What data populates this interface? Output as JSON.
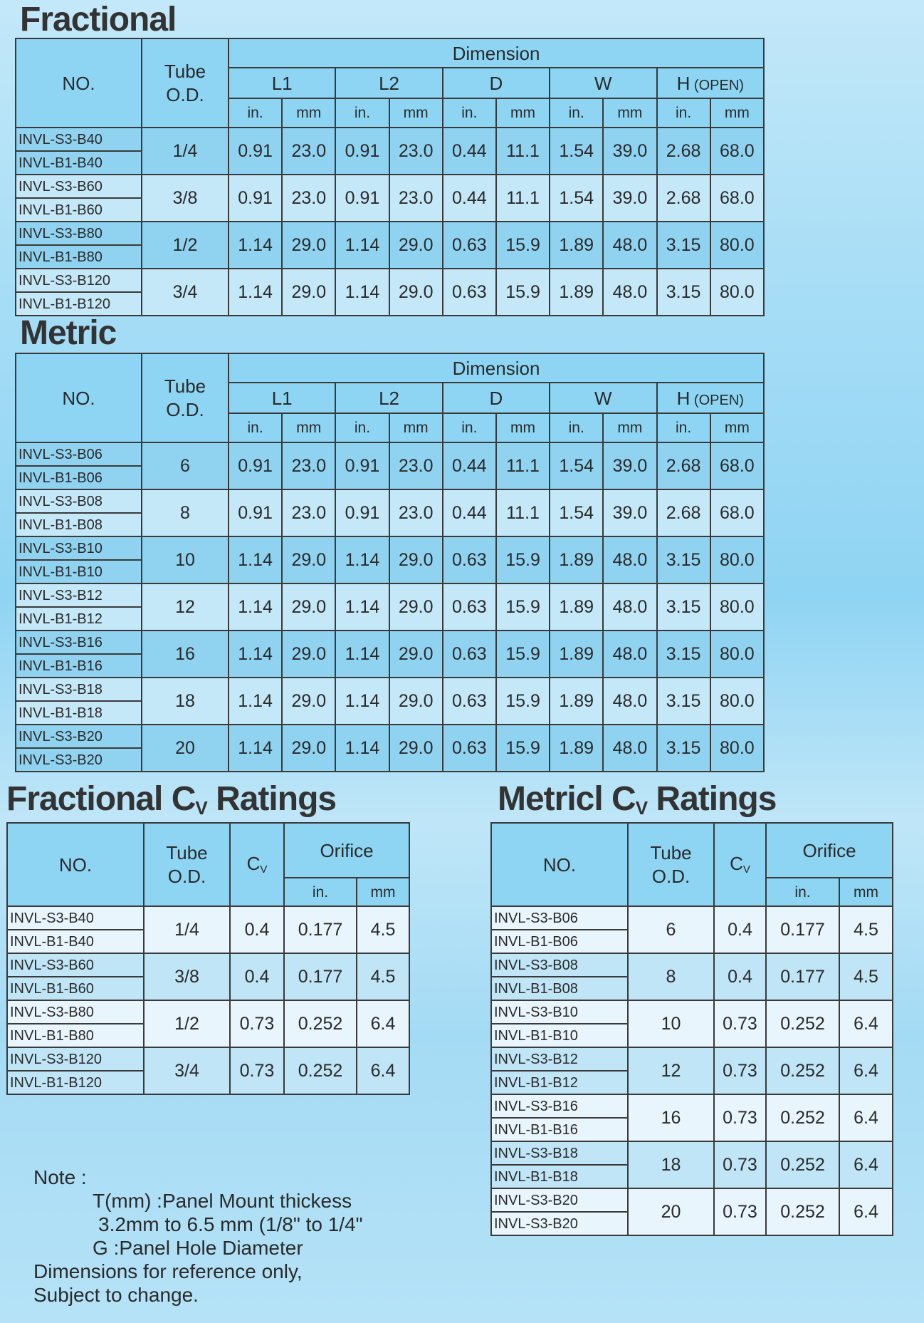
{
  "fractional": {
    "title": "Fractional",
    "header": {
      "no": "NO.",
      "tube": "Tube O.D.",
      "dimension": "Dimension",
      "groups": [
        {
          "label": "L1"
        },
        {
          "label": "L2"
        },
        {
          "label": "D"
        },
        {
          "label": "W"
        },
        {
          "label": "H",
          "suffix": "(OPEN)"
        }
      ],
      "units": [
        "in.",
        "mm"
      ]
    },
    "rows": [
      {
        "models": [
          "INVL-S3-B40",
          "INVL-B1-B40"
        ],
        "tube": "1/4",
        "values": [
          "0.91",
          "23.0",
          "0.91",
          "23.0",
          "0.44",
          "11.1",
          "1.54",
          "39.0",
          "2.68",
          "68.0"
        ]
      },
      {
        "models": [
          "INVL-S3-B60",
          "INVL-B1-B60"
        ],
        "tube": "3/8",
        "values": [
          "0.91",
          "23.0",
          "0.91",
          "23.0",
          "0.44",
          "11.1",
          "1.54",
          "39.0",
          "2.68",
          "68.0"
        ]
      },
      {
        "models": [
          "INVL-S3-B80",
          "INVL-B1-B80"
        ],
        "tube": "1/2",
        "values": [
          "1.14",
          "29.0",
          "1.14",
          "29.0",
          "0.63",
          "15.9",
          "1.89",
          "48.0",
          "3.15",
          "80.0"
        ]
      },
      {
        "models": [
          "INVL-S3-B120",
          "INVL-B1-B120"
        ],
        "tube": "3/4",
        "values": [
          "1.14",
          "29.0",
          "1.14",
          "29.0",
          "0.63",
          "15.9",
          "1.89",
          "48.0",
          "3.15",
          "80.0"
        ]
      }
    ]
  },
  "metric": {
    "title": "Metric",
    "header": {
      "no": "NO.",
      "tube": "Tube O.D.",
      "dimension": "Dimension",
      "groups": [
        {
          "label": "L1"
        },
        {
          "label": "L2"
        },
        {
          "label": "D"
        },
        {
          "label": "W"
        },
        {
          "label": "H",
          "suffix": "(OPEN)"
        }
      ],
      "units": [
        "in.",
        "mm"
      ]
    },
    "rows": [
      {
        "models": [
          "INVL-S3-B06",
          "INVL-B1-B06"
        ],
        "tube": "6",
        "values": [
          "0.91",
          "23.0",
          "0.91",
          "23.0",
          "0.44",
          "11.1",
          "1.54",
          "39.0",
          "2.68",
          "68.0"
        ]
      },
      {
        "models": [
          "INVL-S3-B08",
          "INVL-B1-B08"
        ],
        "tube": "8",
        "values": [
          "0.91",
          "23.0",
          "0.91",
          "23.0",
          "0.44",
          "11.1",
          "1.54",
          "39.0",
          "2.68",
          "68.0"
        ]
      },
      {
        "models": [
          "INVL-S3-B10",
          "INVL-B1-B10"
        ],
        "tube": "10",
        "values": [
          "1.14",
          "29.0",
          "1.14",
          "29.0",
          "0.63",
          "15.9",
          "1.89",
          "48.0",
          "3.15",
          "80.0"
        ]
      },
      {
        "models": [
          "INVL-S3-B12",
          "INVL-B1-B12"
        ],
        "tube": "12",
        "values": [
          "1.14",
          "29.0",
          "1.14",
          "29.0",
          "0.63",
          "15.9",
          "1.89",
          "48.0",
          "3.15",
          "80.0"
        ]
      },
      {
        "models": [
          "INVL-S3-B16",
          "INVL-B1-B16"
        ],
        "tube": "16",
        "values": [
          "1.14",
          "29.0",
          "1.14",
          "29.0",
          "0.63",
          "15.9",
          "1.89",
          "48.0",
          "3.15",
          "80.0"
        ]
      },
      {
        "models": [
          "INVL-S3-B18",
          "INVL-B1-B18"
        ],
        "tube": "18",
        "values": [
          "1.14",
          "29.0",
          "1.14",
          "29.0",
          "0.63",
          "15.9",
          "1.89",
          "48.0",
          "3.15",
          "80.0"
        ]
      },
      {
        "models": [
          "INVL-S3-B20",
          "INVL-S3-B20"
        ],
        "tube": "20",
        "values": [
          "1.14",
          "29.0",
          "1.14",
          "29.0",
          "0.63",
          "15.9",
          "1.89",
          "48.0",
          "3.15",
          "80.0"
        ]
      }
    ]
  },
  "fractional_cv": {
    "title": {
      "main": "Fractional C",
      "sub": "V",
      "rest": " Ratings"
    },
    "header": {
      "no": "NO.",
      "tube": "Tube O.D.",
      "cv": {
        "main": "C",
        "sub": "V"
      },
      "orifice": "Orifice",
      "units": [
        "in.",
        "mm"
      ]
    },
    "rows": [
      {
        "models": [
          "INVL-S3-B40",
          "INVL-B1-B40"
        ],
        "tube": "1/4",
        "cv": "0.4",
        "in": "0.177",
        "mm": "4.5"
      },
      {
        "models": [
          "INVL-S3-B60",
          "INVL-B1-B60"
        ],
        "tube": "3/8",
        "cv": "0.4",
        "in": "0.177",
        "mm": "4.5"
      },
      {
        "models": [
          "INVL-S3-B80",
          "INVL-B1-B80"
        ],
        "tube": "1/2",
        "cv": "0.73",
        "in": "0.252",
        "mm": "6.4"
      },
      {
        "models": [
          "INVL-S3-B120",
          "INVL-B1-B120"
        ],
        "tube": "3/4",
        "cv": "0.73",
        "in": "0.252",
        "mm": "6.4"
      }
    ]
  },
  "metric_cv": {
    "title": {
      "main": "Metricl C",
      "sub": "V",
      "rest": " Ratings"
    },
    "header": {
      "no": "NO.",
      "tube": "Tube O.D.",
      "cv": {
        "main": "C",
        "sub": "V"
      },
      "orifice": "Orifice",
      "units": [
        "in.",
        "mm"
      ]
    },
    "rows": [
      {
        "models": [
          "INVL-S3-B06",
          "INVL-B1-B06"
        ],
        "tube": "6",
        "cv": "0.4",
        "in": "0.177",
        "mm": "4.5"
      },
      {
        "models": [
          "INVL-S3-B08",
          "INVL-B1-B08"
        ],
        "tube": "8",
        "cv": "0.4",
        "in": "0.177",
        "mm": "4.5"
      },
      {
        "models": [
          "INVL-S3-B10",
          "INVL-B1-B10"
        ],
        "tube": "10",
        "cv": "0.73",
        "in": "0.252",
        "mm": "6.4"
      },
      {
        "models": [
          "INVL-S3-B12",
          "INVL-B1-B12"
        ],
        "tube": "12",
        "cv": "0.73",
        "in": "0.252",
        "mm": "6.4"
      },
      {
        "models": [
          "INVL-S3-B16",
          "INVL-B1-B16"
        ],
        "tube": "16",
        "cv": "0.73",
        "in": "0.252",
        "mm": "6.4"
      },
      {
        "models": [
          "INVL-S3-B18",
          "INVL-B1-B18"
        ],
        "tube": "18",
        "cv": "0.73",
        "in": "0.252",
        "mm": "6.4"
      },
      {
        "models": [
          "INVL-S3-B20",
          "INVL-S3-B20"
        ],
        "tube": "20",
        "cv": "0.73",
        "in": "0.252",
        "mm": "6.4"
      }
    ]
  },
  "note": {
    "label": "Note :",
    "lines": [
      "T(mm) :Panel Mount thickess",
      "3.2mm to 6.5 mm (1/8\" to 1/4\"",
      "G :Panel Hole Diameter",
      "Dimensions for reference only,",
      "Subject to change."
    ]
  },
  "colors": {
    "header": "#8dd5f3",
    "row_dark": "#8fd3f1",
    "row_light": "#c4e8f8",
    "cv_row_light": "#e8f5fc",
    "cv_row_dark": "#bfe5f6",
    "border": "#3a3a3a"
  }
}
